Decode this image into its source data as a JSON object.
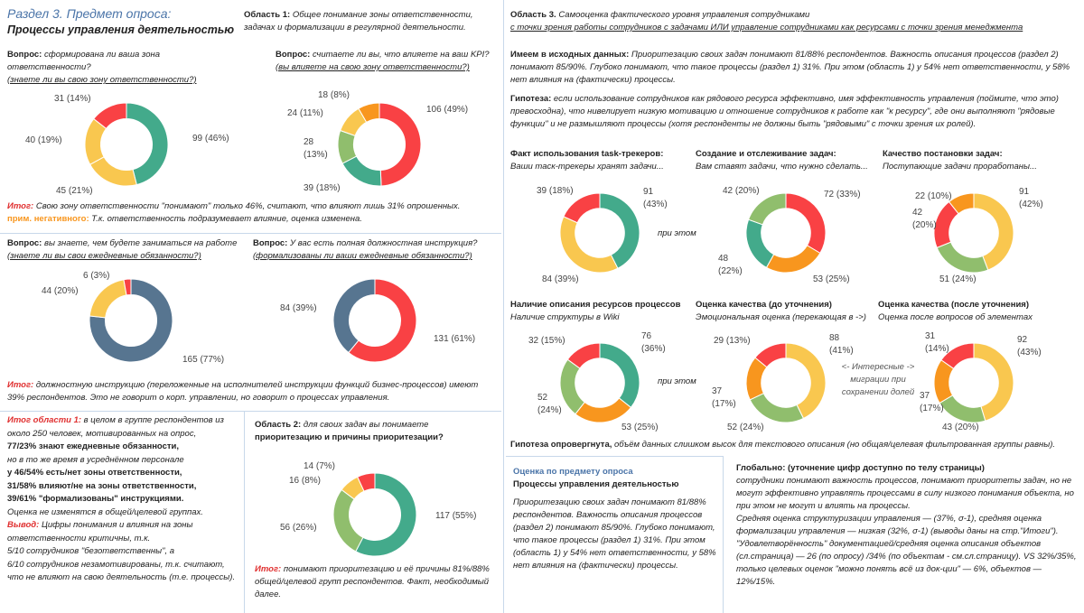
{
  "header": {
    "section": "Раздел 3. Предмет опроса:",
    "title": "Процессы управления деятельностью"
  },
  "area1": {
    "label": "Область 1:",
    "text": " Общее понимание зоны ответственности, задачах и формализации в регулярной деятельности."
  },
  "q1": {
    "label": "Вопрос:",
    "text": " сформирована ли ваша зона ответственности?",
    "sub": "(знаете ли вы свою зону ответственности?)"
  },
  "q2": {
    "label": "Вопрос:",
    "text": " считаете ли вы, что влияете на ваш KPI?",
    "sub": "(вы влияете на свою зону ответственности?)"
  },
  "result1": {
    "label": "Итог:",
    "text": " Свою зону ответственности \"понимают\" только 46%, считают, что влияют лишь 31% опрошенных.",
    "note_label": "прим. негативного:",
    "note": " Т.к. ответственность подразумевает влияние, оценка изменена."
  },
  "q3": {
    "label": "Вопрос:",
    "text": " вы знаете, чем будете заниматься на работе",
    "sub": "(знаете ли вы свои ежедневные обязанности?)"
  },
  "q4": {
    "label": "Вопрос:",
    "text": " У вас есть полная должностная инструкция?",
    "sub": "(формализованы ли ваши ежедневные обязанности?)"
  },
  "result2": {
    "label": "Итог:",
    "text": " должностную инструкцию (переложенные на исполнителей инструкции функций бизнес-процессов) имеют 39% респондентов. Это не говорит о корп. управлении, но говорит о процессах управления."
  },
  "area1_result": {
    "label": "Итог области 1:",
    "text": " в целом в группе респондентов из около 250 человек, мотивированных на опрос,",
    "lines": [
      "77/23% знают ежедневные обязанности,",
      "но в то же время в усреднённом персонале",
      "у 46/54% есть/нет зоны ответственности,",
      "31/58% влияют/не на зоны ответственности,",
      "39/61% \"формализованы\" инструкциями.",
      "Оценка не изменятся в общей/целевой группах."
    ],
    "conclusion_label": "Вывод:",
    "conclusion": " Цифры понимания и влияния на зоны ответственности критичны, т.к.",
    "tail": [
      "5/10 сотрудников \"безответственны\", а",
      "6/10 сотрудников незамотивированы, т.к. считают, что не влияют на свою деятельность (т.е. процессы)."
    ]
  },
  "area2": {
    "label": "Область 2:",
    "text": " для своих задач вы понимаете",
    "sub": "приоритезацию и причины приоритезации?"
  },
  "result5": {
    "label": "Итог:",
    "text": " понимают приоритезацию и её причины 81%/88% общей/целевой групп респондентов. Факт, необходимый далее."
  },
  "area3": {
    "label": "Область 3.",
    "text": " Самооценка фактического уровня управления сотрудниками",
    "sub": "с точки зрения работы сотрудников с задачами ИЛИ управление сотрудниками как ресурсами с точки зрения менеджмента"
  },
  "given": {
    "label": "Имеем в исходных данных:",
    "text": " Приоритезацию своих задач понимают 81/88% респондентов. Важность описания процессов (раздел 2) понимают 85/90%. Глубоко понимают, что такое процессы (раздел 1) 31%. При этом (область 1) у 54% нет ответственности, у 58% нет влияния на (фактически) процессы."
  },
  "hypothesis": {
    "label": "Гипотеза:",
    "text": " если использование сотрудников как рядового ресурса эффективно, имя эффективность управления (поймите, что это) превосходна), что нивелирует низкую мотивацию и отношение сотрудников к работе как \"к ресурсу\", где они выполняют \"рядовые функции\" и не размышляют процессы (хотя респонденты не должны быть \"рядовыми\" с точки зрения их ролей)."
  },
  "panels": [
    {
      "title": "Факт использования task-трекеров:",
      "subtitle": "Ваши таск-трекеры хранят задачи..."
    },
    {
      "title": "Создание и отслеживание задач:",
      "subtitle": "Вам ставят задачи, что нужно сделать..."
    },
    {
      "title": "Качество постановки задач:",
      "subtitle": "Поступающие задачи проработаны..."
    },
    {
      "title": "Наличие описания ресурсов процессов",
      "subtitle": "Наличие структуры в Wiki"
    },
    {
      "title": "Оценка качества (до уточнения)",
      "subtitle": "Эмоциональная оценка (перекающая в ->)"
    },
    {
      "title": "Оценка качества (после уточнения)",
      "subtitle": "Оценка после вопросов об элементах"
    }
  ],
  "connectors": [
    "при этом",
    "при этом"
  ],
  "migration_note": "<- Интересные -> миграции при сохранении долей",
  "refuted": {
    "label": "Гипотеза опровергнута,",
    "text": " объём данных слишком высок для текстового описания (но общая/целевая фильтрованная группы равны)."
  },
  "summary": {
    "heading": "Оценка по предмету опроса",
    "title": "Процессы управления деятельностью",
    "text": "Приоритезацию своих задач понимают 81/88% респондентов. Важность описания процессов (раздел 2) понимают 85/90%. Глубоко понимают, что такое процессы (раздел 1) 31%. При этом (область 1) у 54% нет ответственности, у 58% нет влияния на (фактически) процессы."
  },
  "global": {
    "title": "Глобально: (уточнение цифр доступно по телу страницы)",
    "paragraphs": [
      "сотрудники понимают важность процессов, понимают приоритеты задач, но не могут эффективно управлять процессами в силу низкого понимания объекта, но при этом не могут и влиять на процессы.",
      "Средняя оценка структуризации управления — (37%, σ-1), средняя оценка формализации управления — низкая (32%, σ-1) (выводы даны на стр.\"Итоги\"). \"Удовлетворённость\" документацией/средняя оценка описания объектов (сл.страница) — 26 (по опросу) /34% (по объектам - см.сл.страницу). VS 32%/35%, только целевых оценок \"можно понять всё из док-ции\" — 6%, объектов — 12%/15%."
    ]
  },
  "donuts": [
    {
      "type": "pie",
      "values": [
        99,
        45,
        40,
        31
      ],
      "value_labels": [
        "99 (46%)",
        "45 (21%)",
        "40 (19%)",
        "31 (14%)"
      ],
      "colors": [
        "#43aa8b",
        "#f9c74f",
        "#f9c74f",
        "#f94144"
      ]
    },
    {
      "type": "pie",
      "values": [
        106,
        39,
        28,
        24,
        18
      ],
      "value_labels": [
        "106 (49%)",
        "39 (18%)",
        "28 (13%)",
        "24 (11%)",
        "18 (8%)"
      ],
      "colors": [
        "#f94144",
        "#43aa8b",
        "#90be6d",
        "#f9c74f",
        "#f8961e"
      ]
    },
    {
      "type": "pie",
      "values": [
        165,
        44,
        6
      ],
      "value_labels": [
        "165 (77%)",
        "44 (20%)",
        "6 (3%)"
      ],
      "colors": [
        "#577590",
        "#f9c74f",
        "#f94144"
      ]
    },
    {
      "type": "pie",
      "values": [
        131,
        84
      ],
      "value_labels": [
        "131 (61%)",
        "84 (39%)"
      ],
      "colors": [
        "#f94144",
        "#577590"
      ]
    },
    {
      "type": "pie",
      "values": [
        117,
        56,
        16,
        14
      ],
      "value_labels": [
        "117 (55%)",
        "56 (26%)",
        "16 (8%)",
        "14 (7%)"
      ],
      "colors": [
        "#43aa8b",
        "#90be6d",
        "#f9c74f",
        "#f94144"
      ]
    },
    {
      "type": "pie",
      "values": [
        91,
        84,
        39
      ],
      "value_labels": [
        "91 (43%)",
        "84 (39%)",
        "39 (18%)"
      ],
      "colors": [
        "#43aa8b",
        "#f9c74f",
        "#f94144"
      ]
    },
    {
      "type": "pie",
      "values": [
        72,
        53,
        48,
        42
      ],
      "value_labels": [
        "72 (33%)",
        "53 (25%)",
        "48 (22%)",
        "42 (20%)"
      ],
      "colors": [
        "#f94144",
        "#f8961e",
        "#43aa8b",
        "#90be6d"
      ]
    },
    {
      "type": "pie",
      "values": [
        91,
        51,
        42,
        22
      ],
      "value_labels": [
        "91 (42%)",
        "51 (24%)",
        "42 (20%)",
        "22 (10%)"
      ],
      "colors": [
        "#f9c74f",
        "#90be6d",
        "#f94144",
        "#f8961e"
      ]
    },
    {
      "type": "pie",
      "values": [
        76,
        53,
        52,
        32
      ],
      "value_labels": [
        "76 (36%)",
        "53 (25%)",
        "52 (24%)",
        "32 (15%)"
      ],
      "colors": [
        "#43aa8b",
        "#f8961e",
        "#90be6d",
        "#f94144"
      ]
    },
    {
      "type": "pie",
      "values": [
        88,
        52,
        37,
        29
      ],
      "value_labels": [
        "88 (41%)",
        "52 (24%)",
        "37 (17%)",
        "29 (13%)"
      ],
      "colors": [
        "#f9c74f",
        "#90be6d",
        "#f8961e",
        "#f94144"
      ]
    },
    {
      "type": "pie",
      "values": [
        92,
        43,
        37,
        31
      ],
      "value_labels": [
        "92 (43%)",
        "43 (20%)",
        "37 (17%)",
        "31 (14%)"
      ],
      "colors": [
        "#f9c74f",
        "#90be6d",
        "#f8961e",
        "#f94144"
      ]
    }
  ]
}
